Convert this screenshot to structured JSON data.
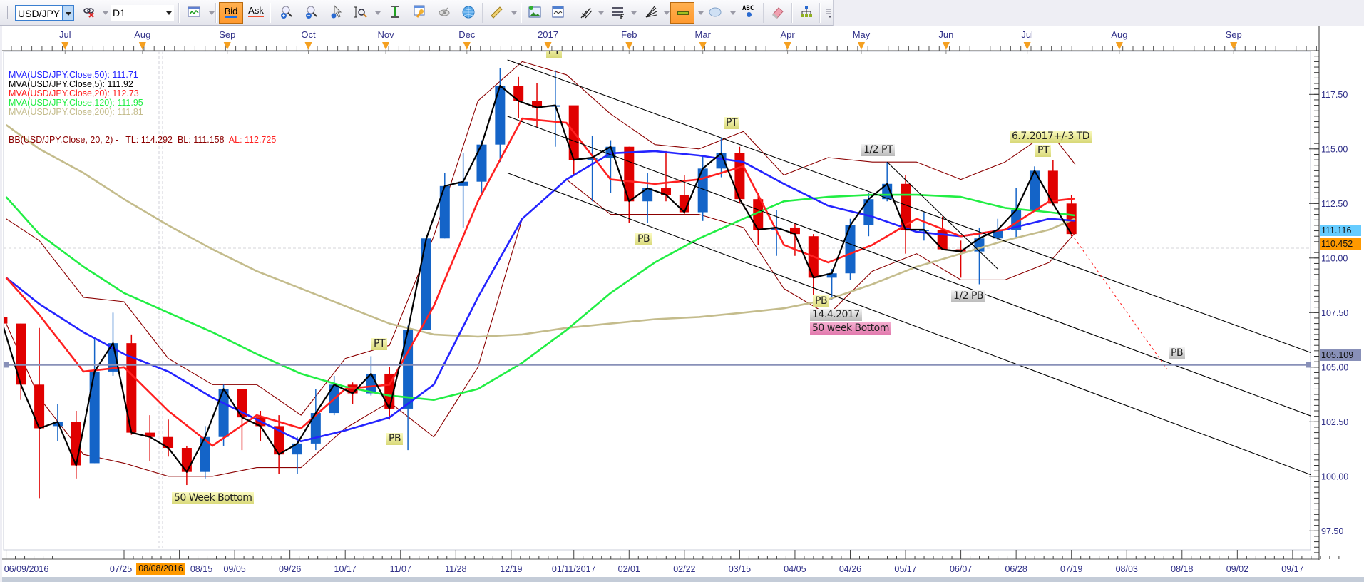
{
  "toolbar": {
    "symbol": "USD/JPY",
    "timeframe": "D1",
    "bid_label": "Bid",
    "ask_label": "Ask",
    "abc_label": "ABC",
    "icons": [
      "unlink-icon",
      "chart-type-icon",
      "zoom-in-icon",
      "zoom-out-icon",
      "pointer-zoom-icon",
      "zoom-area-icon",
      "vertical-cursor-icon",
      "properties-icon",
      "eye-icon",
      "globe-icon",
      "ruler-icon",
      "add-image-icon",
      "window-icon",
      "pitchfork-icon",
      "fibonacci-icon",
      "fan-icon",
      "line-icon",
      "ellipse-icon",
      "text-icon",
      "eraser-icon",
      "hierarchy-icon",
      "overflow-icon"
    ]
  },
  "legend": [
    {
      "label": "MVA(USD/JPY.Close,50): ",
      "value": "111.71",
      "color": "#2424ff"
    },
    {
      "label": "MVA(USD/JPY.Close,5): ",
      "value": "111.92",
      "color": "#000000"
    },
    {
      "label": "MVA(USD/JPY.Close,20): ",
      "value": "112.73",
      "color": "#ff2020"
    },
    {
      "label": "MVA(USD/JPY.Close,120): ",
      "value": "111.95",
      "color": "#22ee44"
    },
    {
      "label": "MVA(USD/JPY.Close,200): ",
      "value": "111.81",
      "color": "#c4bc8c"
    }
  ],
  "bb_legend": {
    "label": "BB(USD/JPY.Close, 20, 2) -",
    "tl": "TL: 114.292",
    "bl": "BL: 111.158",
    "al": "AL: 112.725",
    "color": "#8b0000",
    "al_color": "#ff2020"
  },
  "price_badges": {
    "bid": "111.116",
    "ask": "110.452",
    "hline": "105.109",
    "bid_color": "#66ccff",
    "ask_color": "#ff9900",
    "hline_color": "#8890b8"
  },
  "crosshair_date": "08/08/2016",
  "annotations": {
    "pt_jan": "PT",
    "pt_mar": "PT",
    "pb_feb": "PB",
    "half_pt": "1/2 PT",
    "td_date": "6.7.2017+/-3 TD",
    "pt_jul": "PT",
    "pb_apr": "PB",
    "date_apr": "14.4.2017",
    "bottom_apr": "50 week Bottom",
    "half_pb": "1/2 PB",
    "pb_target": "PB",
    "pt_oct": "PT",
    "pb_nov": "PB",
    "bottom_aug": "50 Week Bottom"
  },
  "chart_data": {
    "type": "candlestick",
    "symbol": "USD/JPY",
    "timeframe": "D1",
    "ylim": [
      96.5,
      119.5
    ],
    "y_ticks": [
      "117.50",
      "115.00",
      "112.50",
      "110.00",
      "107.50",
      "105.00",
      "102.50",
      "100.00",
      "97.50"
    ],
    "top_axis": [
      {
        "label": "Jul",
        "date": "2016-07-01"
      },
      {
        "label": "Aug",
        "date": "2016-08-01"
      },
      {
        "label": "Sep",
        "date": "2016-09-01"
      },
      {
        "label": "Oct",
        "date": "2016-10-03"
      },
      {
        "label": "Nov",
        "date": "2016-11-01"
      },
      {
        "label": "Dec",
        "date": "2016-12-01"
      },
      {
        "label": "2017",
        "date": "2017-01-02"
      },
      {
        "label": "Feb",
        "date": "2017-02-01"
      },
      {
        "label": "Mar",
        "date": "2017-03-01"
      },
      {
        "label": "Apr",
        "date": "2017-04-03"
      },
      {
        "label": "May",
        "date": "2017-05-01"
      },
      {
        "label": "Jun",
        "date": "2017-06-01"
      },
      {
        "label": "Jul",
        "date": "2017-07-03"
      },
      {
        "label": "Aug",
        "date": "2017-08-01"
      },
      {
        "label": "Sep",
        "date": "2017-09-01"
      }
    ],
    "bottom_axis": [
      {
        "label": "06/09/2016",
        "date": "2016-06-09"
      },
      {
        "label": "07/25",
        "date": "2016-07-25"
      },
      {
        "label": "08/15",
        "date": "2016-08-15"
      },
      {
        "label": "09/05",
        "date": "2016-09-05"
      },
      {
        "label": "09/26",
        "date": "2016-09-26"
      },
      {
        "label": "10/17",
        "date": "2016-10-17"
      },
      {
        "label": "11/07",
        "date": "2016-11-07"
      },
      {
        "label": "11/28",
        "date": "2016-11-28"
      },
      {
        "label": "12/19",
        "date": "2016-12-19"
      },
      {
        "label": "01/11/2017",
        "date": "2017-01-11"
      },
      {
        "label": "02/01",
        "date": "2017-02-01"
      },
      {
        "label": "02/22",
        "date": "2017-02-22"
      },
      {
        "label": "03/15",
        "date": "2017-03-15"
      },
      {
        "label": "04/05",
        "date": "2017-04-05"
      },
      {
        "label": "04/26",
        "date": "2017-04-26"
      },
      {
        "label": "05/17",
        "date": "2017-05-17"
      },
      {
        "label": "06/07",
        "date": "2017-06-07"
      },
      {
        "label": "06/28",
        "date": "2017-06-28"
      },
      {
        "label": "07/19",
        "date": "2017-07-19"
      },
      {
        "label": "08/03",
        "date": "2017-08-03"
      },
      {
        "label": "08/18",
        "date": "2017-08-18"
      },
      {
        "label": "09/02",
        "date": "2017-09-02"
      },
      {
        "label": "09/17",
        "date": "2017-09-17"
      }
    ],
    "candles_weekly": [
      [
        "2016-06-06",
        107.3,
        107.9,
        106.3,
        107.0
      ],
      [
        "2016-06-13",
        107.0,
        107.0,
        103.5,
        104.2
      ],
      [
        "2016-06-20",
        104.2,
        106.8,
        99.0,
        102.2
      ],
      [
        "2016-06-27",
        102.3,
        103.3,
        101.6,
        102.5
      ],
      [
        "2016-07-04",
        102.5,
        103.0,
        99.9,
        100.5
      ],
      [
        "2016-07-11",
        100.6,
        106.3,
        100.6,
        104.8
      ],
      [
        "2016-07-18",
        104.8,
        107.5,
        104.6,
        106.1
      ],
      [
        "2016-07-25",
        106.1,
        106.5,
        101.9,
        102.0
      ],
      [
        "2016-08-01",
        102.0,
        102.8,
        100.7,
        101.8
      ],
      [
        "2016-08-08",
        101.8,
        102.6,
        100.9,
        101.3
      ],
      [
        "2016-08-15",
        101.3,
        101.4,
        99.6,
        100.2
      ],
      [
        "2016-08-22",
        100.2,
        102.3,
        99.9,
        101.8
      ],
      [
        "2016-08-29",
        101.8,
        104.2,
        101.4,
        104.0
      ],
      [
        "2016-09-05",
        104.0,
        104.0,
        101.2,
        102.7
      ],
      [
        "2016-09-12",
        102.7,
        103.0,
        101.6,
        102.3
      ],
      [
        "2016-09-19",
        102.3,
        102.8,
        100.1,
        101.0
      ],
      [
        "2016-09-26",
        101.0,
        101.8,
        100.1,
        101.5
      ],
      [
        "2016-10-03",
        101.5,
        104.0,
        101.2,
        102.9
      ],
      [
        "2016-10-10",
        102.9,
        104.6,
        102.8,
        104.2
      ],
      [
        "2016-10-17",
        104.2,
        104.3,
        103.3,
        103.8
      ],
      [
        "2016-10-24",
        103.8,
        105.5,
        103.7,
        104.7
      ],
      [
        "2016-10-31",
        104.7,
        105.0,
        102.6,
        103.1
      ],
      [
        "2016-11-07",
        103.1,
        106.9,
        101.2,
        106.7
      ],
      [
        "2016-11-14",
        106.7,
        110.9,
        106.7,
        110.9
      ],
      [
        "2016-11-21",
        110.9,
        113.9,
        110.9,
        113.3
      ],
      [
        "2016-11-28",
        113.3,
        114.8,
        111.4,
        113.5
      ],
      [
        "2016-12-05",
        113.5,
        115.4,
        112.9,
        115.2
      ],
      [
        "2016-12-12",
        115.2,
        118.7,
        114.4,
        117.9
      ],
      [
        "2016-12-19",
        117.9,
        118.3,
        116.4,
        117.2
      ],
      [
        "2016-12-26",
        117.2,
        118.0,
        116.0,
        116.9
      ],
      [
        "2017-01-02",
        117.0,
        118.6,
        115.1,
        117.0
      ],
      [
        "2017-01-09",
        117.0,
        116.9,
        113.8,
        114.5
      ],
      [
        "2017-01-16",
        114.5,
        115.6,
        112.6,
        114.6
      ],
      [
        "2017-01-23",
        114.6,
        115.4,
        113.0,
        115.1
      ],
      [
        "2017-01-30",
        115.1,
        115.1,
        111.6,
        112.6
      ],
      [
        "2017-02-06",
        112.6,
        113.9,
        111.6,
        113.2
      ],
      [
        "2017-02-13",
        113.2,
        114.9,
        112.6,
        112.9
      ],
      [
        "2017-02-20",
        112.9,
        113.8,
        112.0,
        112.1
      ],
      [
        "2017-02-27",
        112.1,
        114.7,
        111.7,
        114.1
      ],
      [
        "2017-03-06",
        114.1,
        115.5,
        113.7,
        114.8
      ],
      [
        "2017-03-13",
        114.8,
        115.1,
        112.5,
        112.7
      ],
      [
        "2017-03-20",
        112.7,
        113.0,
        110.6,
        111.3
      ],
      [
        "2017-03-27",
        111.3,
        112.2,
        110.1,
        111.4
      ],
      [
        "2017-04-03",
        111.4,
        111.6,
        110.1,
        111.1
      ],
      [
        "2017-04-10",
        111.0,
        111.1,
        108.1,
        109.1
      ],
      [
        "2017-04-17",
        109.1,
        109.5,
        108.1,
        109.3
      ],
      [
        "2017-04-24",
        109.3,
        111.8,
        109.0,
        111.5
      ],
      [
        "2017-05-01",
        111.5,
        113.0,
        111.0,
        112.7
      ],
      [
        "2017-05-08",
        112.7,
        114.4,
        112.6,
        113.4
      ],
      [
        "2017-05-15",
        113.4,
        113.8,
        110.2,
        111.3
      ],
      [
        "2017-05-22",
        111.3,
        112.1,
        110.8,
        111.3
      ],
      [
        "2017-05-29",
        111.3,
        111.9,
        110.4,
        110.4
      ],
      [
        "2017-06-05",
        110.4,
        110.8,
        109.1,
        110.3
      ],
      [
        "2017-06-12",
        110.3,
        111.4,
        108.8,
        110.9
      ],
      [
        "2017-06-19",
        110.9,
        111.8,
        110.8,
        111.3
      ],
      [
        "2017-06-26",
        111.3,
        113.2,
        110.9,
        112.2
      ],
      [
        "2017-07-03",
        112.2,
        114.2,
        112.2,
        114.0
      ],
      [
        "2017-07-10",
        114.0,
        114.5,
        112.4,
        112.5
      ],
      [
        "2017-07-17",
        112.5,
        112.9,
        111.0,
        111.1
      ]
    ],
    "candle_colors": {
      "up": "#1464c8",
      "down": "#e00000"
    },
    "line_dates": [
      "2016-06-09",
      "2016-06-22",
      "2016-07-08",
      "2016-07-25",
      "2016-08-10",
      "2016-08-26",
      "2016-09-13",
      "2016-09-29",
      "2016-10-17",
      "2016-11-02",
      "2016-11-18",
      "2016-12-06",
      "2016-12-22",
      "2017-01-09",
      "2017-01-25",
      "2017-02-10",
      "2017-02-28",
      "2017-03-16",
      "2017-03-31",
      "2017-04-18",
      "2017-05-04",
      "2017-05-22",
      "2017-06-07",
      "2017-06-23",
      "2017-07-11",
      "2017-07-20"
    ],
    "series": [
      {
        "name": "MVA(USD/JPY.Close,200)",
        "color": "#c4bc8c",
        "values": [
          116.1,
          115.0,
          113.9,
          112.7,
          111.5,
          110.4,
          109.4,
          108.6,
          107.8,
          107.0,
          106.5,
          106.4,
          106.5,
          106.8,
          107.0,
          107.2,
          107.3,
          107.5,
          107.7,
          108.1,
          108.8,
          109.6,
          110.2,
          110.8,
          111.3,
          111.81
        ]
      },
      {
        "name": "MVA(USD/JPY.Close,120)",
        "color": "#22ee44",
        "values": [
          112.8,
          111.1,
          109.6,
          108.4,
          107.5,
          106.6,
          105.6,
          104.7,
          104.1,
          103.7,
          103.5,
          104.0,
          105.2,
          106.7,
          108.4,
          109.8,
          110.9,
          111.8,
          112.6,
          112.8,
          112.9,
          112.9,
          112.8,
          112.3,
          112.1,
          111.95
        ]
      },
      {
        "name": "MVA(USD/JPY.Close,50)",
        "color": "#2424ff",
        "values": [
          109.1,
          107.9,
          106.6,
          105.6,
          104.8,
          103.6,
          102.6,
          101.6,
          102.1,
          102.7,
          104.2,
          108.2,
          111.8,
          113.6,
          114.8,
          114.9,
          114.7,
          114.4,
          113.4,
          112.4,
          111.9,
          111.2,
          111.0,
          111.3,
          111.8,
          111.71
        ]
      },
      {
        "name": "MVA(USD/JPY.Close,20)",
        "color": "#ff2020",
        "values": [
          109.1,
          107.4,
          104.8,
          105.0,
          103.0,
          101.4,
          102.8,
          102.2,
          104.0,
          104.2,
          107.8,
          112.6,
          116.4,
          116.2,
          113.6,
          113.4,
          113.6,
          114.2,
          110.6,
          109.8,
          110.6,
          111.8,
          111.0,
          111.3,
          112.6,
          112.73
        ]
      },
      {
        "name": "BB TL",
        "color": "#8b0000",
        "values": [
          111.8,
          110.8,
          108.2,
          108.0,
          105.4,
          104.2,
          104.2,
          102.8,
          105.4,
          106.0,
          111.0,
          117.2,
          119.0,
          118.4,
          116.6,
          115.2,
          115.0,
          115.8,
          113.8,
          114.6,
          114.4,
          114.4,
          113.6,
          114.4,
          115.8,
          114.292
        ]
      },
      {
        "name": "BB BL",
        "color": "#8b0000",
        "values": [
          107.0,
          103.6,
          101.0,
          100.6,
          100.0,
          100.0,
          100.4,
          100.4,
          102.2,
          103.4,
          101.8,
          105.0,
          111.8,
          113.6,
          112.0,
          112.0,
          112.0,
          111.4,
          108.6,
          107.4,
          109.4,
          110.2,
          109.0,
          109.0,
          109.8,
          111.158
        ]
      }
    ],
    "ma5_color": "#000000",
    "trendlines": [
      {
        "name": "channel-upper",
        "from": [
          "2016-12-16",
          119.08
        ],
        "to": [
          "2017-09-23",
          105.6
        ],
        "color": "#000000"
      },
      {
        "name": "channel-middle",
        "from": [
          "2016-12-16",
          116.5
        ],
        "to": [
          "2017-09-23",
          102.7
        ],
        "color": "#000000"
      },
      {
        "name": "channel-lower",
        "from": [
          "2016-12-16",
          113.9
        ],
        "to": [
          "2017-09-23",
          100.0
        ],
        "color": "#000000"
      },
      {
        "name": "short-trend",
        "from": [
          "2017-05-10",
          114.4
        ],
        "to": [
          "2017-06-21",
          109.5
        ],
        "color": "#000000"
      },
      {
        "name": "projection",
        "from": [
          "2017-07-19",
          111.1
        ],
        "to": [
          "2017-08-14",
          104.9
        ],
        "color": "#ff2020",
        "dashed": true
      }
    ],
    "hline": 105.109,
    "ask_line": 110.452
  }
}
